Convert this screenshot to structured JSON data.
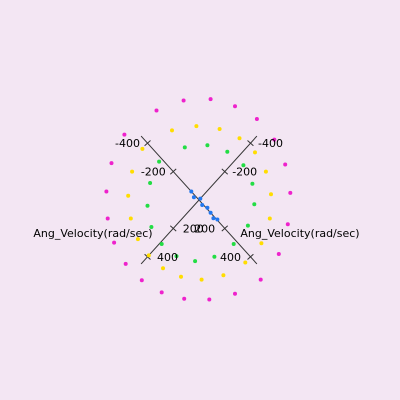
{
  "chart_data": {
    "type": "scatter",
    "title": "",
    "background": "#f3e6f3",
    "axes": [
      {
        "name": "axis-1",
        "label": "Ang_Velocity(rad/sec)",
        "ticks": [
          -400,
          -200,
          200,
          400
        ],
        "tick_labels": [
          "-400",
          "-200",
          "200",
          "400"
        ],
        "range": [
          -450,
          450
        ]
      },
      {
        "name": "axis-2",
        "label": "Ang_Velocity(rad/sec)",
        "ticks": [
          -400,
          -200,
          200,
          400
        ],
        "tick_labels": [
          "-400",
          "-200",
          "200",
          "400"
        ],
        "range": [
          -450,
          450
        ]
      }
    ],
    "grid": false,
    "legend": "none",
    "color_bands": [
      {
        "name": "outer-ring",
        "color": "#ee22cc"
      },
      {
        "name": "middle-ring",
        "color": "#ffdd00"
      },
      {
        "name": "inner-ring-yellowgreen",
        "color": "#ccee22"
      },
      {
        "name": "inner-ring-green",
        "color": "#22dd44"
      },
      {
        "name": "inner-ring-teal",
        "color": "#22ddaa"
      },
      {
        "name": "inner-ring-cyan",
        "color": "#33ccdd"
      },
      {
        "name": "core-blue",
        "color": "#2277ee"
      },
      {
        "name": "core-navy",
        "color": "#2233cc"
      }
    ],
    "series": [
      {
        "color": "#ee22cc",
        "x": [
          -520,
          -470,
          -390,
          -290,
          -180,
          -60,
          60,
          180,
          290,
          390,
          470,
          520,
          500,
          430,
          330,
          210,
          80,
          -60,
          -190,
          -310,
          -410,
          -480
        ],
        "y": [
          60,
          210,
          330,
          420,
          480,
          510,
          505,
          470,
          405,
          310,
          190,
          40,
          -120,
          -260,
          -380,
          -460,
          -505,
          -510,
          -470,
          -400,
          -290,
          -150
        ]
      },
      {
        "color": "#ffdd00",
        "x": [
          -400,
          -360,
          -290,
          -200,
          -100,
          0,
          100,
          200,
          290,
          360,
          400,
          395,
          340,
          260,
          160,
          50,
          -60,
          -170,
          -270,
          -350
        ],
        "y": [
          40,
          160,
          260,
          330,
          375,
          390,
          380,
          340,
          270,
          170,
          40,
          -90,
          -210,
          -300,
          -360,
          -385,
          -375,
          -330,
          -250,
          -140
        ]
      },
      {
        "color": "#22dd44",
        "x": [
          -290,
          -250,
          -180,
          -90,
          10,
          110,
          200,
          260,
          290,
          280,
          230,
          150,
          50,
          -60,
          -160,
          -240
        ],
        "y": [
          20,
          130,
          220,
          280,
          300,
          285,
          230,
          140,
          20,
          -100,
          -200,
          -265,
          -295,
          -280,
          -225,
          -130
        ]
      },
      {
        "color": "#2277ee",
        "x": [
          -60,
          -30,
          0,
          30,
          60,
          90,
          120,
          140
        ],
        "y": [
          0,
          10,
          -10,
          5,
          -5,
          0,
          8,
          -3
        ]
      }
    ]
  }
}
